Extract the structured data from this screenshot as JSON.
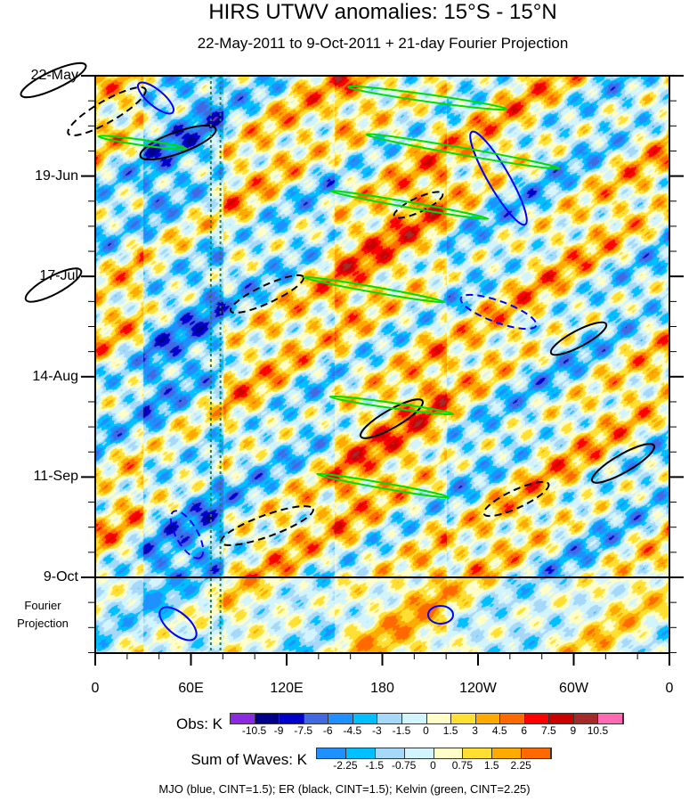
{
  "chart_data": {
    "type": "heatmap",
    "title": "HIRS UTWV anomalies: 15°S - 15°N",
    "subtitle": "22-May-2011 to 9-Oct-2011 + 21-day Fourier Projection",
    "x_ticks": [
      "0",
      "60E",
      "120E",
      "180",
      "120W",
      "60W",
      "0"
    ],
    "x_tick_values": [
      0,
      60,
      120,
      180,
      240,
      300,
      360
    ],
    "y_ticks": [
      "22-May",
      "19-Jun",
      "17-Jul",
      "14-Aug",
      "11-Sep",
      "9-Oct"
    ],
    "y_tick_days": [
      0,
      28,
      56,
      84,
      112,
      140
    ],
    "projection_days": 21,
    "projection_label": [
      "Fourier",
      "Projection"
    ],
    "reference_lines_lon": [
      72.5,
      78.5
    ],
    "obs_colorbar": {
      "label": "Obs: K",
      "levels": [
        "-10.5",
        "-9",
        "-7.5",
        "-6",
        "-4.5",
        "-3",
        "-1.5",
        "0",
        "1.5",
        "3",
        "4.5",
        "6",
        "7.5",
        "9",
        "10.5"
      ],
      "colors": [
        "#8a2be2",
        "#00008b",
        "#0000cd",
        "#4169e1",
        "#1e90ff",
        "#00bfff",
        "#a6d8fa",
        "#d2f4ff",
        "#fffdc8",
        "#ffe032",
        "#ffaa00",
        "#ff6a00",
        "#ff0000",
        "#cd0000",
        "#a52a2a",
        "#ff69b4"
      ]
    },
    "waves_colorbar": {
      "label": "Sum of Waves: K",
      "levels": [
        "-2.25",
        "-1.5",
        "-0.75",
        "0",
        "0.75",
        "1.5",
        "2.25"
      ],
      "colors": [
        "#1e90ff",
        "#00bfff",
        "#a6d8fa",
        "#d2f4ff",
        "#fffdc8",
        "#ffe032",
        "#ffaa00",
        "#ff6a00"
      ]
    },
    "contours": {
      "MJO": {
        "color": "#0000ff",
        "cint": 1.5
      },
      "ER": {
        "color": "#000000",
        "cint": 1.5
      },
      "Kelvin": {
        "color": "#00dd00",
        "cint": 2.25
      }
    },
    "footer": "MJO (blue, CINT=1.5); ER (black, CINT=1.5); Kelvin (green, CINT=2.25)"
  }
}
